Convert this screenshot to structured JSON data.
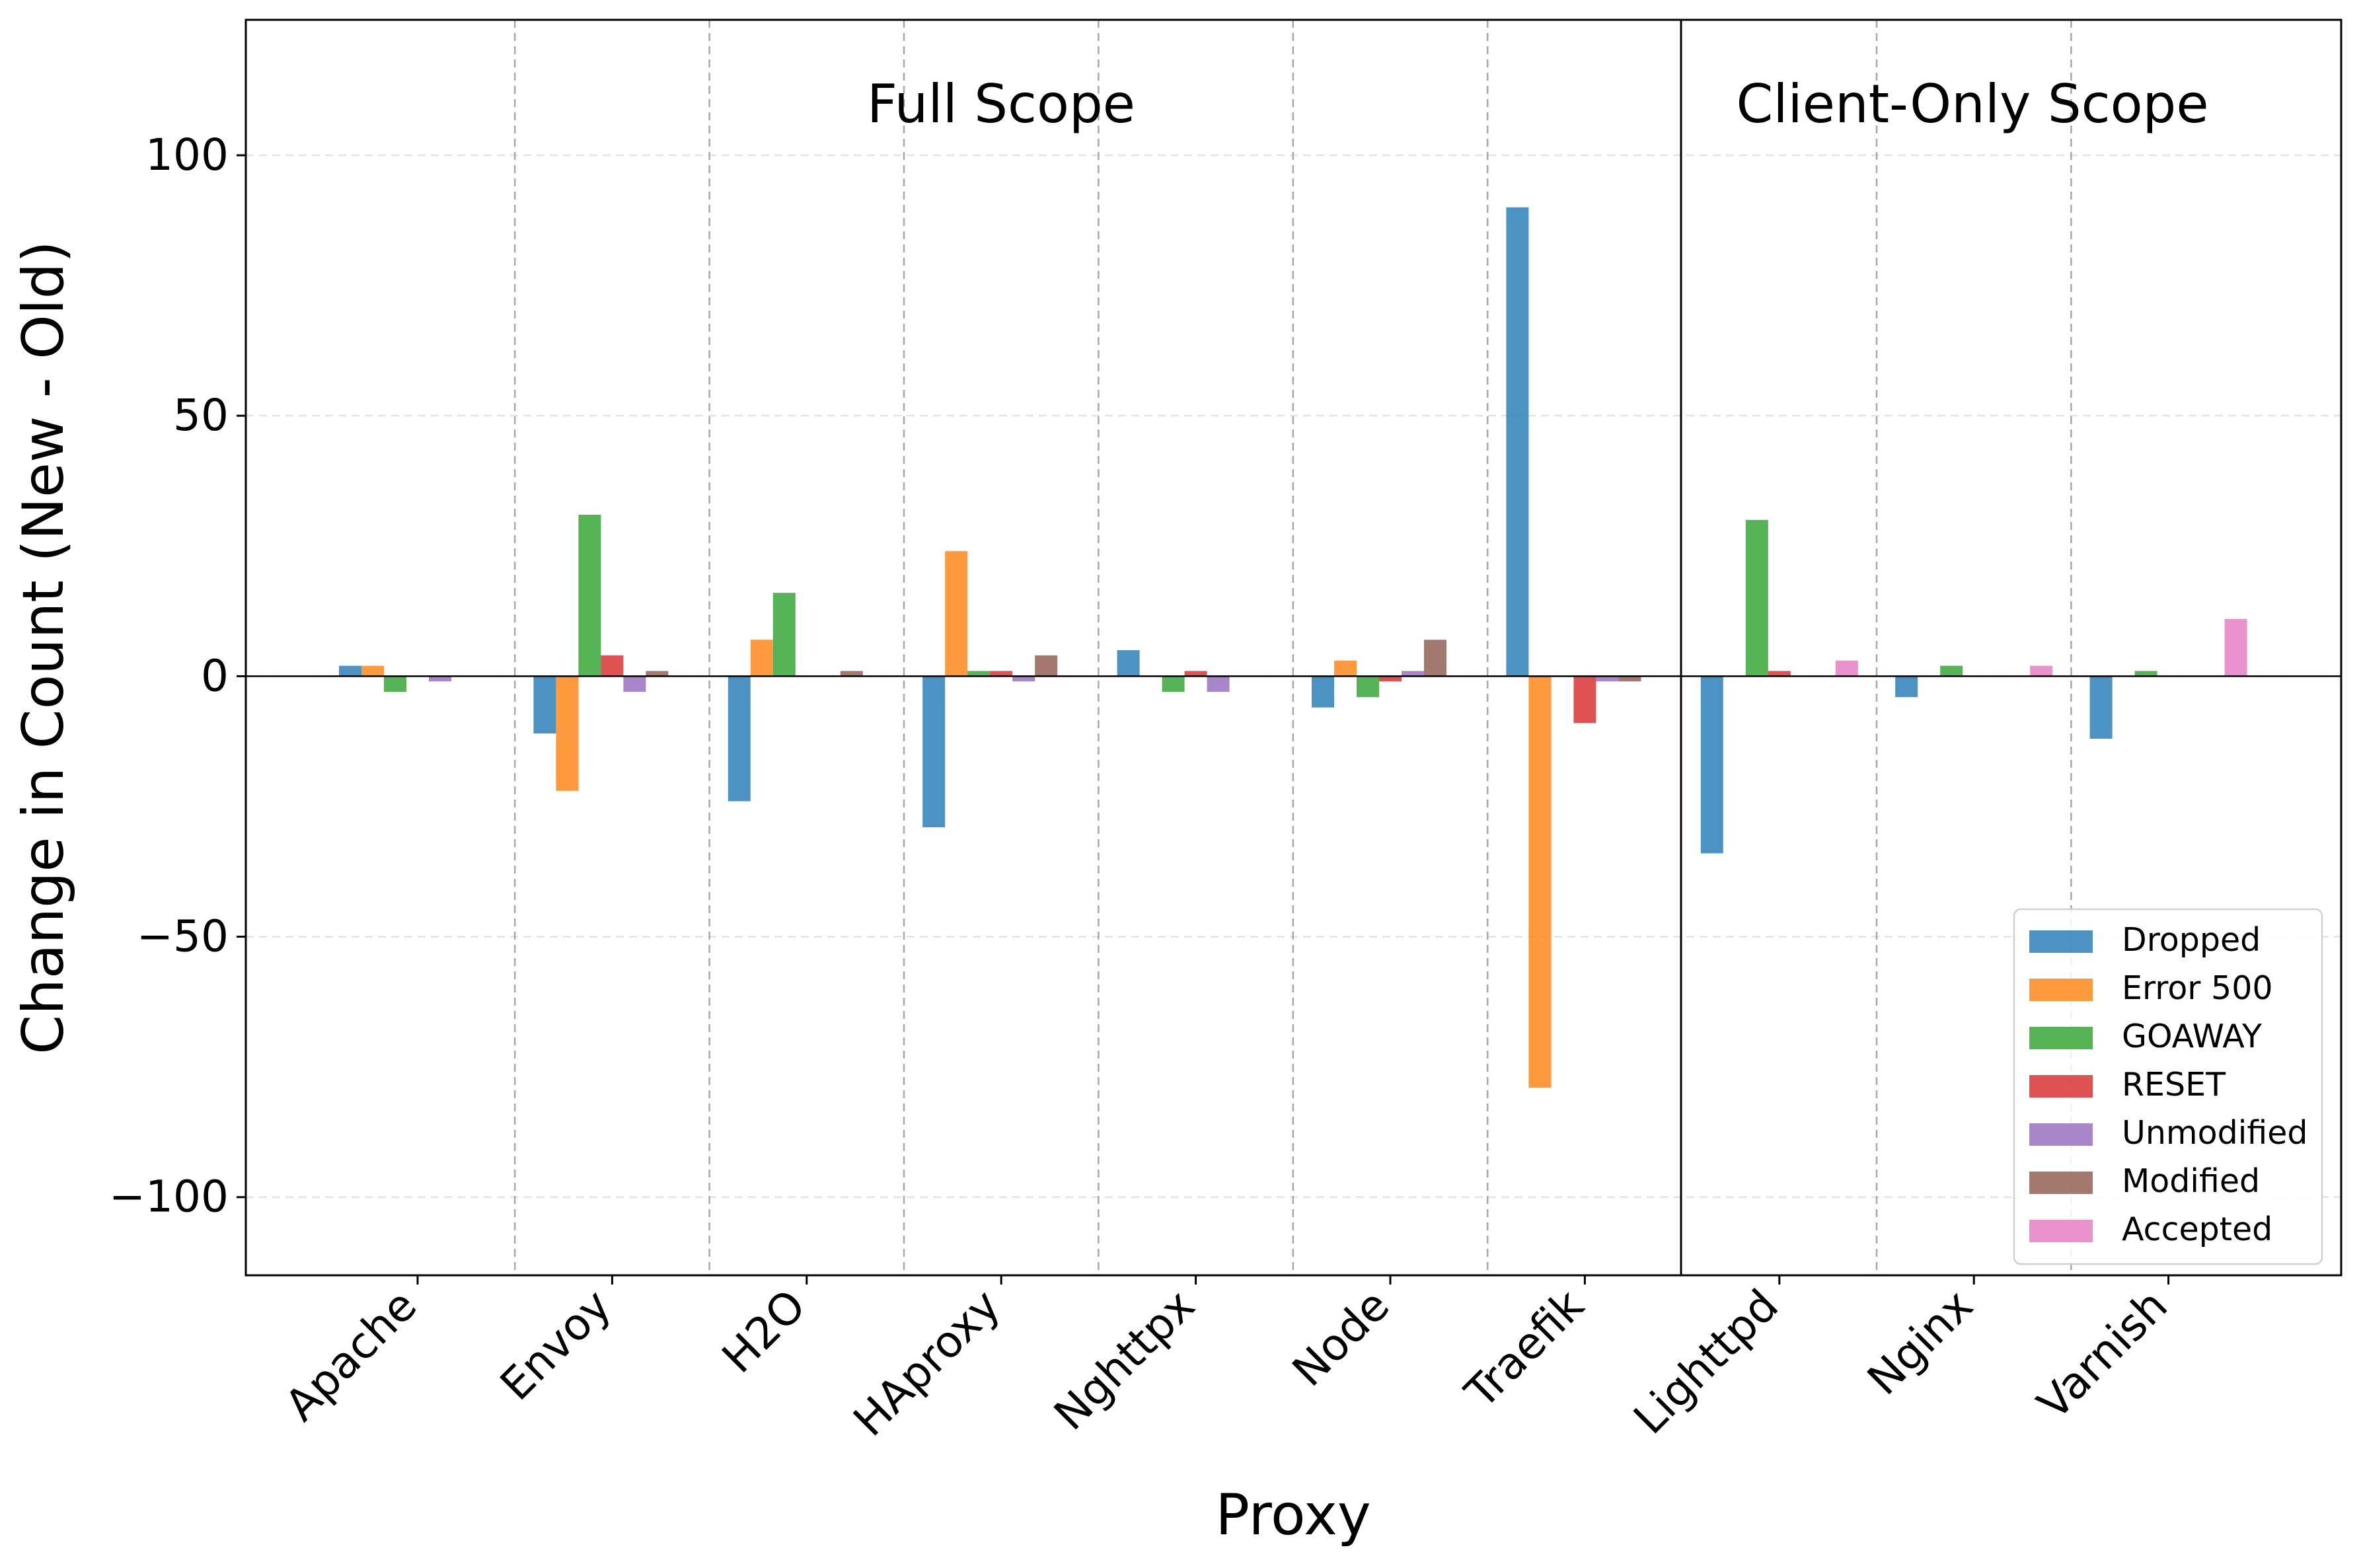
{
  "chart_data": {
    "type": "bar",
    "xlabel": "Proxy",
    "ylabel": "Change in Count (New - Old)",
    "ylim": [
      -115,
      126
    ],
    "yticks": [
      -100,
      -50,
      0,
      50,
      100
    ],
    "ytick_labels": [
      "−100",
      "−50",
      "0",
      "50",
      "100"
    ],
    "grid": "y-dashed",
    "legend_position": "bottom-right",
    "categories": [
      "Apache",
      "Envoy",
      "H2O",
      "HAproxy",
      "Nghttpx",
      "Node",
      "Traefik",
      "Lighttpd",
      "Nginx",
      "Varnish"
    ],
    "groups": [
      {
        "label": "Full Scope",
        "categories": [
          "Apache",
          "Envoy",
          "H2O",
          "HAproxy",
          "Nghttpx",
          "Node",
          "Traefik"
        ]
      },
      {
        "label": "Client-Only Scope",
        "categories": [
          "Lighttpd",
          "Nginx",
          "Varnish"
        ]
      }
    ],
    "series": [
      {
        "name": "Dropped",
        "color": "#1f77b4",
        "values": [
          2,
          -11,
          -24,
          -29,
          5,
          -6,
          90,
          -34,
          -4,
          -12
        ]
      },
      {
        "name": "Error 500",
        "color": "#ff7f0e",
        "values": [
          2,
          -22,
          7,
          24,
          0,
          3,
          -79,
          0,
          0,
          0
        ]
      },
      {
        "name": "GOAWAY",
        "color": "#2ca02c",
        "values": [
          -3,
          31,
          16,
          1,
          -3,
          -4,
          0,
          30,
          2,
          1
        ]
      },
      {
        "name": "RESET",
        "color": "#d62728",
        "values": [
          0,
          4,
          0,
          1,
          1,
          -1,
          -9,
          1,
          0,
          0
        ]
      },
      {
        "name": "Unmodified",
        "color": "#9467bd",
        "values": [
          -1,
          -3,
          0,
          -1,
          -3,
          1,
          -1,
          0,
          0,
          0
        ]
      },
      {
        "name": "Modified",
        "color": "#8c564b",
        "values": [
          0,
          1,
          1,
          4,
          0,
          7,
          -1,
          0,
          0,
          0
        ]
      },
      {
        "name": "Accepted",
        "color": "#e377c2",
        "values": [
          0,
          0,
          0,
          0,
          0,
          0,
          0,
          3,
          2,
          11
        ]
      }
    ]
  }
}
